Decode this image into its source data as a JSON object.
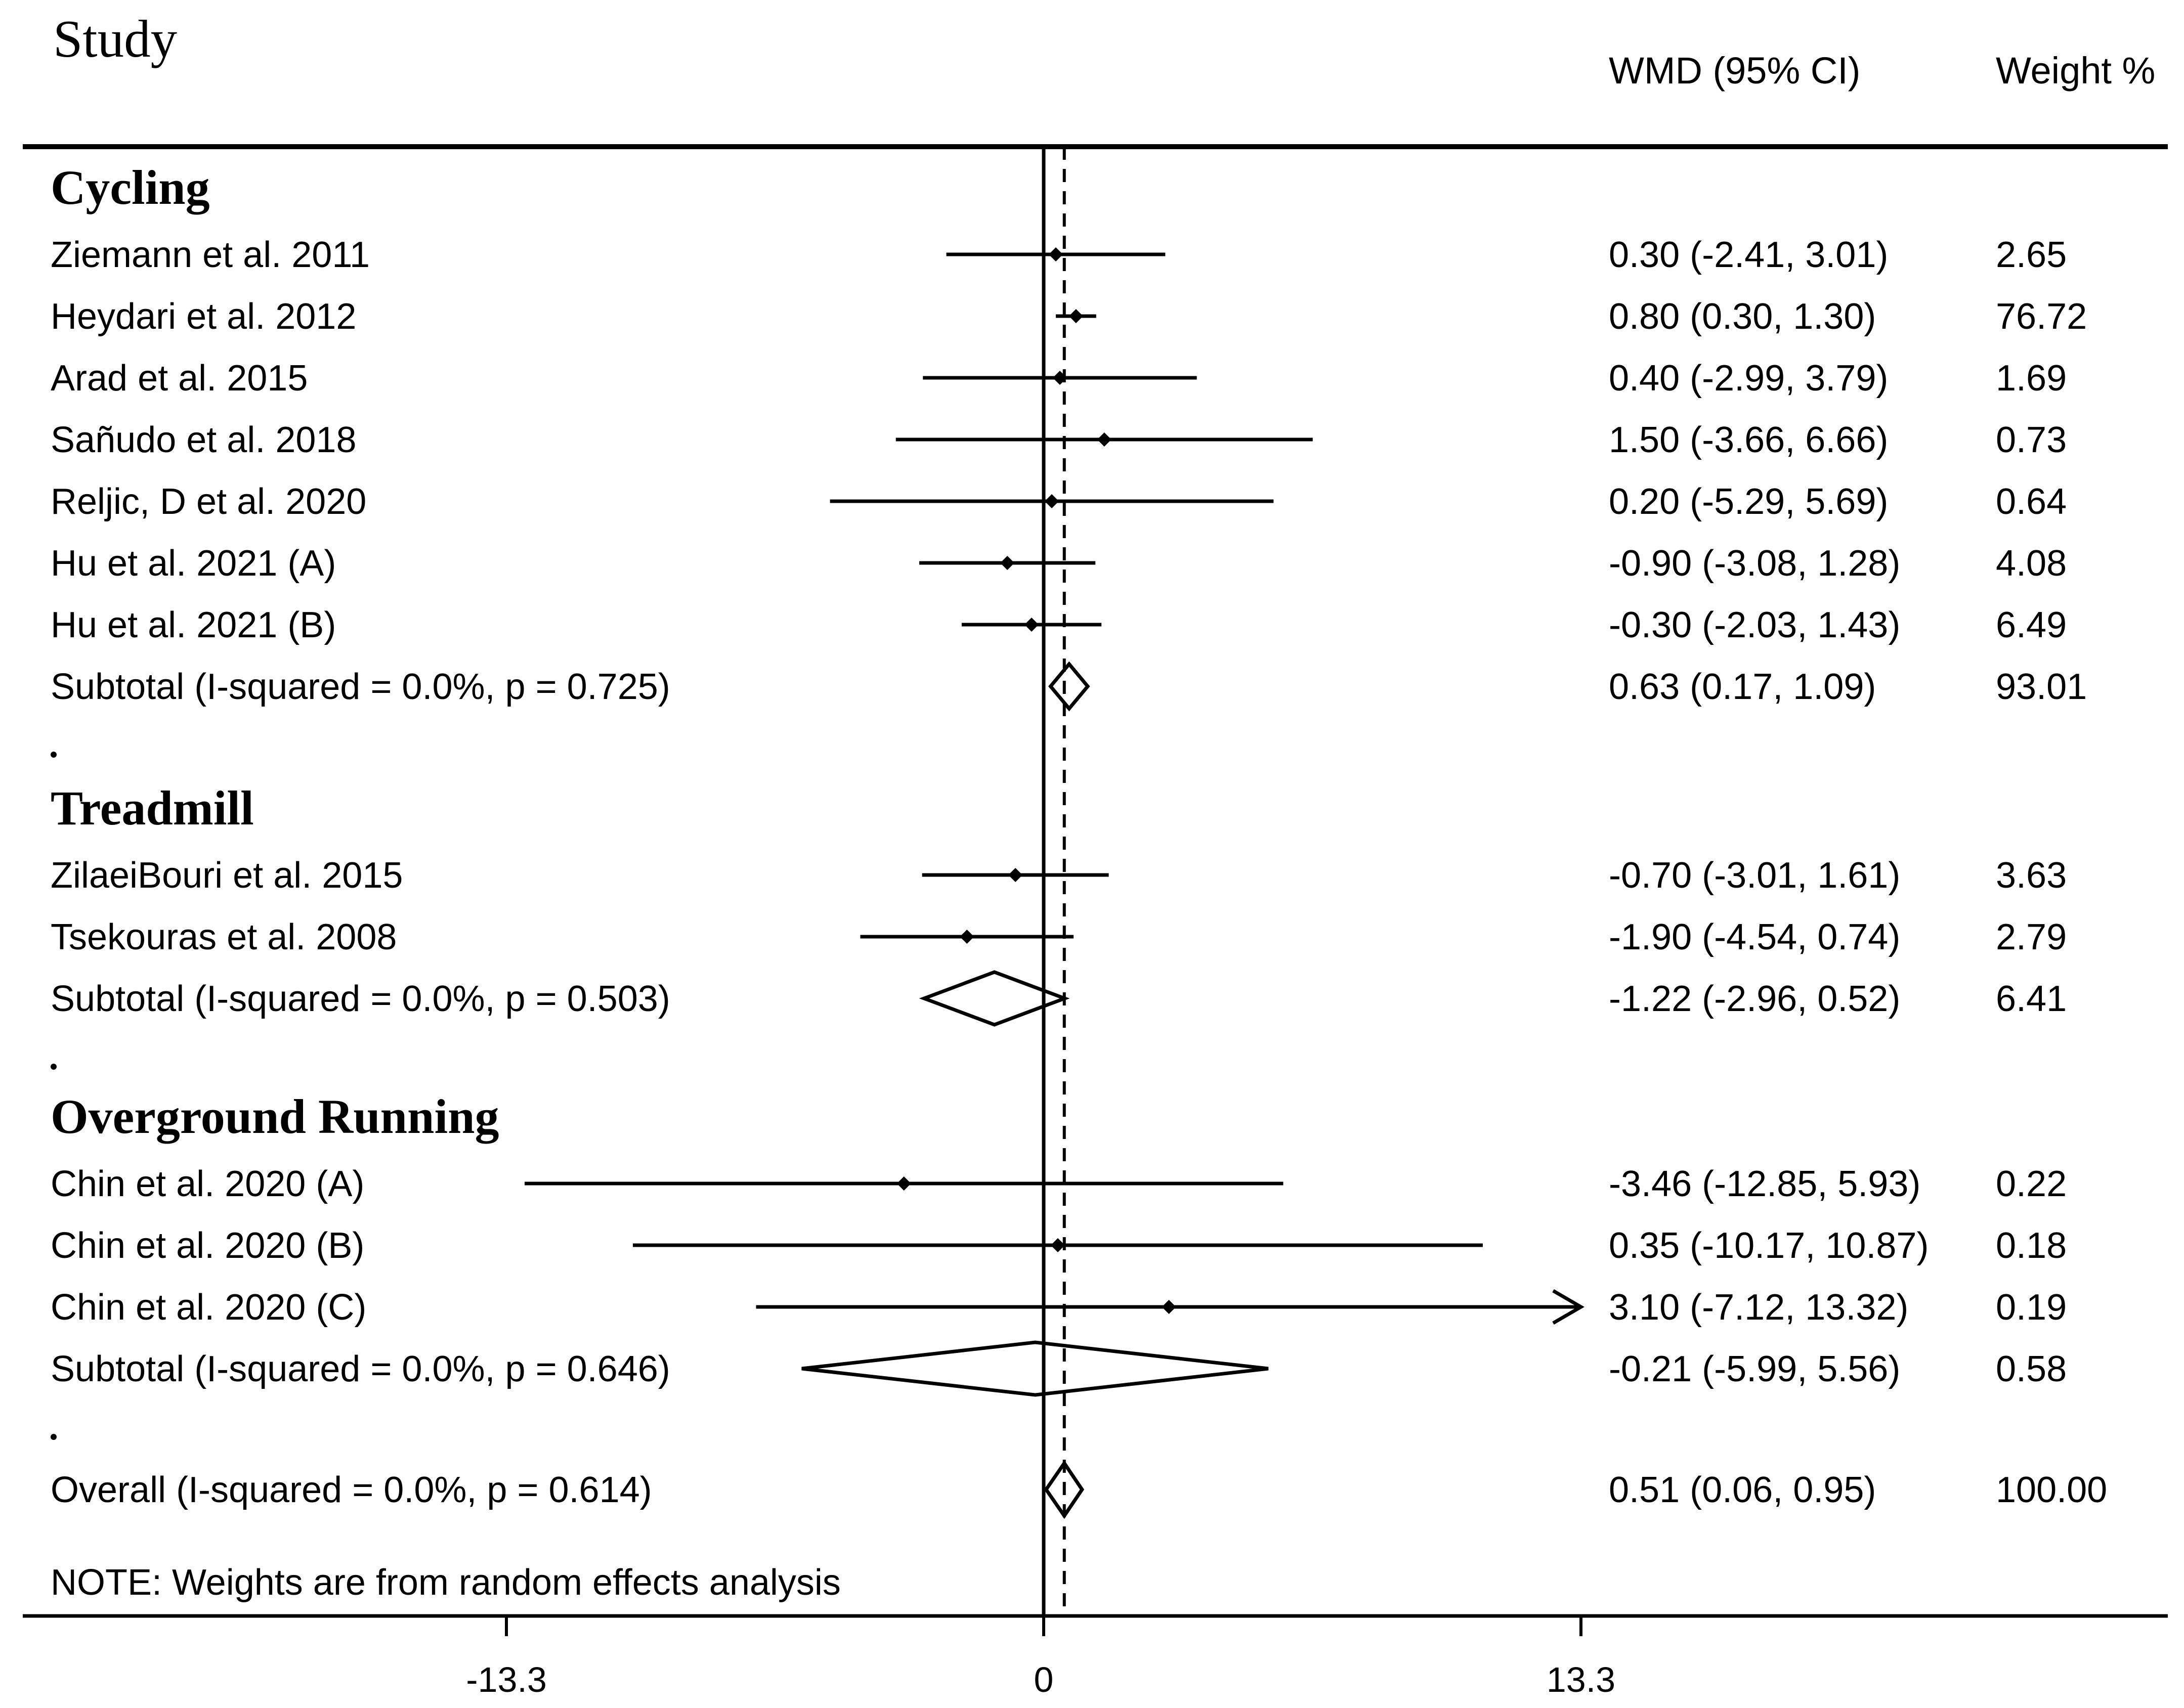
{
  "header": {
    "study": "Study",
    "effect": "WMD (95% CI)",
    "weight": "Weight %"
  },
  "note": "NOTE: Weights are from random effects analysis",
  "chart_data": {
    "type": "forest",
    "xticks": [
      -13.3,
      0,
      13.3
    ],
    "xtick_labels": [
      "-13.3",
      "0",
      "13.3"
    ],
    "xlim": [
      -13.3,
      13.3
    ],
    "null_line": 0,
    "overall_line": 0.51,
    "groups": [
      {
        "name": "Cycling",
        "studies": [
          {
            "label": "Ziemann et al. 2011",
            "est": 0.3,
            "lo": -2.41,
            "hi": 3.01,
            "ci_text": "0.30 (-2.41, 3.01)",
            "weight": "2.65"
          },
          {
            "label": "Heydari et al. 2012",
            "est": 0.8,
            "lo": 0.3,
            "hi": 1.3,
            "ci_text": "0.80 (0.30, 1.30)",
            "weight": "76.72"
          },
          {
            "label": "Arad et al. 2015",
            "est": 0.4,
            "lo": -2.99,
            "hi": 3.79,
            "ci_text": "0.40 (-2.99, 3.79)",
            "weight": "1.69"
          },
          {
            "label": "Sañudo et al. 2018",
            "est": 1.5,
            "lo": -3.66,
            "hi": 6.66,
            "ci_text": "1.50 (-3.66, 6.66)",
            "weight": "0.73"
          },
          {
            "label": "Reljic, D  et al. 2020",
            "est": 0.2,
            "lo": -5.29,
            "hi": 5.69,
            "ci_text": "0.20 (-5.29, 5.69)",
            "weight": "0.64"
          },
          {
            "label": "Hu et al. 2021 (A)",
            "est": -0.9,
            "lo": -3.08,
            "hi": 1.28,
            "ci_text": "-0.90 (-3.08, 1.28)",
            "weight": "4.08"
          },
          {
            "label": "Hu et al. 2021 (B)",
            "est": -0.3,
            "lo": -2.03,
            "hi": 1.43,
            "ci_text": "-0.30 (-2.03, 1.43)",
            "weight": "6.49"
          }
        ],
        "subtotal": {
          "label": "Subtotal  (I-squared = 0.0%, p = 0.725)",
          "est": 0.63,
          "lo": 0.17,
          "hi": 1.09,
          "ci_text": "0.63 (0.17, 1.09)",
          "weight": "93.01"
        }
      },
      {
        "name": "Treadmill",
        "studies": [
          {
            "label": "ZilaeiBouri et al. 2015",
            "est": -0.7,
            "lo": -3.01,
            "hi": 1.61,
            "ci_text": "-0.70 (-3.01, 1.61)",
            "weight": "3.63"
          },
          {
            "label": "Tsekouras et al. 2008",
            "est": -1.9,
            "lo": -4.54,
            "hi": 0.74,
            "ci_text": "-1.90 (-4.54, 0.74)",
            "weight": "2.79"
          }
        ],
        "subtotal": {
          "label": "Subtotal  (I-squared = 0.0%, p = 0.503)",
          "est": -1.22,
          "lo": -2.96,
          "hi": 0.52,
          "ci_text": "-1.22 (-2.96, 0.52)",
          "weight": "6.41"
        }
      },
      {
        "name": "Overground Running",
        "studies": [
          {
            "label": "Chin et al. 2020 (A)",
            "est": -3.46,
            "lo": -12.85,
            "hi": 5.93,
            "ci_text": "-3.46 (-12.85, 5.93)",
            "weight": "0.22"
          },
          {
            "label": "Chin et al. 2020 (B)",
            "est": 0.35,
            "lo": -10.17,
            "hi": 10.87,
            "ci_text": "0.35 (-10.17, 10.87)",
            "weight": "0.18"
          },
          {
            "label": "Chin et al. 2020 (C)",
            "est": 3.1,
            "lo": -7.12,
            "hi": 13.32,
            "ci_text": "3.10 (-7.12, 13.32)",
            "weight": "0.19",
            "arrow_right": true
          }
        ],
        "subtotal": {
          "label": "Subtotal  (I-squared = 0.0%, p = 0.646)",
          "est": -0.21,
          "lo": -5.99,
          "hi": 5.56,
          "ci_text": "-0.21 (-5.99, 5.56)",
          "weight": "0.58"
        }
      }
    ],
    "overall": {
      "label": "Overall  (I-squared = 0.0%, p = 0.614)",
      "est": 0.51,
      "lo": 0.06,
      "hi": 0.95,
      "ci_text": "0.51 (0.06, 0.95)",
      "weight": "100.00"
    }
  }
}
